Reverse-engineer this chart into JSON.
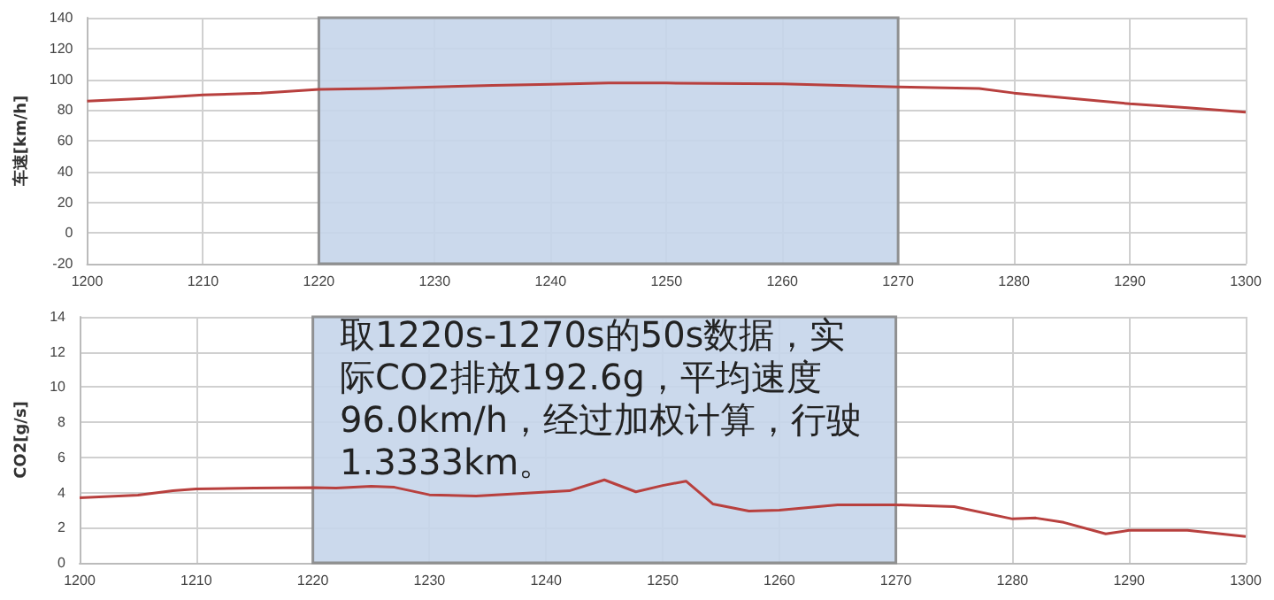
{
  "chart_data": [
    {
      "type": "line",
      "ylabel": "车速[km/h]",
      "x": [
        1200,
        1205,
        1210,
        1215,
        1220,
        1225,
        1230,
        1235,
        1240,
        1245,
        1250,
        1260,
        1270,
        1277,
        1280,
        1285,
        1290,
        1295,
        1300
      ],
      "series": [
        {
          "color": "#b8403e",
          "values": [
            85.7,
            87.5,
            89.8,
            91,
            93.4,
            94,
            95,
            96,
            96.7,
            97.5,
            97.5,
            97,
            95,
            94,
            91,
            87.5,
            84,
            81.5,
            78.5
          ]
        }
      ],
      "xlim": [
        1200,
        1300
      ],
      "xticks": [
        1200,
        1210,
        1220,
        1230,
        1240,
        1250,
        1260,
        1270,
        1280,
        1290,
        1300
      ],
      "ylim": [
        -20,
        140
      ],
      "yticks": [
        -20,
        0,
        20,
        40,
        60,
        80,
        100,
        120,
        140
      ],
      "bands": [
        {
          "axis": "x",
          "from": 1220,
          "to": 1270,
          "color": "#c5d5ea"
        }
      ],
      "grid": true,
      "marker": "none",
      "line_style": "solid"
    },
    {
      "type": "line",
      "ylabel": "CO2[g/s]",
      "x": [
        1200,
        1205,
        1208,
        1210,
        1215,
        1220,
        1222,
        1225,
        1227,
        1230,
        1234,
        1238,
        1242,
        1245,
        1247.7,
        1250,
        1252,
        1254.3,
        1257.4,
        1260,
        1265,
        1270,
        1275,
        1280,
        1282,
        1284.4,
        1288,
        1290,
        1295,
        1300
      ],
      "series": [
        {
          "color": "#b8403e",
          "values": [
            3.7,
            3.85,
            4.1,
            4.2,
            4.25,
            4.28,
            4.25,
            4.35,
            4.3,
            3.87,
            3.8,
            3.95,
            4.1,
            4.72,
            4.04,
            4.4,
            4.65,
            3.35,
            2.95,
            3.0,
            3.3,
            3.3,
            3.2,
            2.5,
            2.55,
            2.3,
            1.65,
            1.85,
            1.85,
            1.5
          ]
        }
      ],
      "xlim": [
        1200,
        1300
      ],
      "xticks": [
        1200,
        1210,
        1220,
        1230,
        1240,
        1250,
        1260,
        1270,
        1280,
        1290,
        1300
      ],
      "ylim": [
        0,
        14
      ],
      "yticks": [
        0,
        2,
        4,
        6,
        8,
        10,
        12,
        14
      ],
      "bands": [
        {
          "axis": "x",
          "from": 1220,
          "to": 1270,
          "color": "#c5d5ea"
        }
      ],
      "grid": true,
      "marker": "none",
      "line_style": "solid",
      "annotations": [
        "取1220s-1270s的50s数据，实际CO2排放192.6g，平均速度96.0km/h，经过加权计算，行驶1.3333km。"
      ]
    }
  ]
}
